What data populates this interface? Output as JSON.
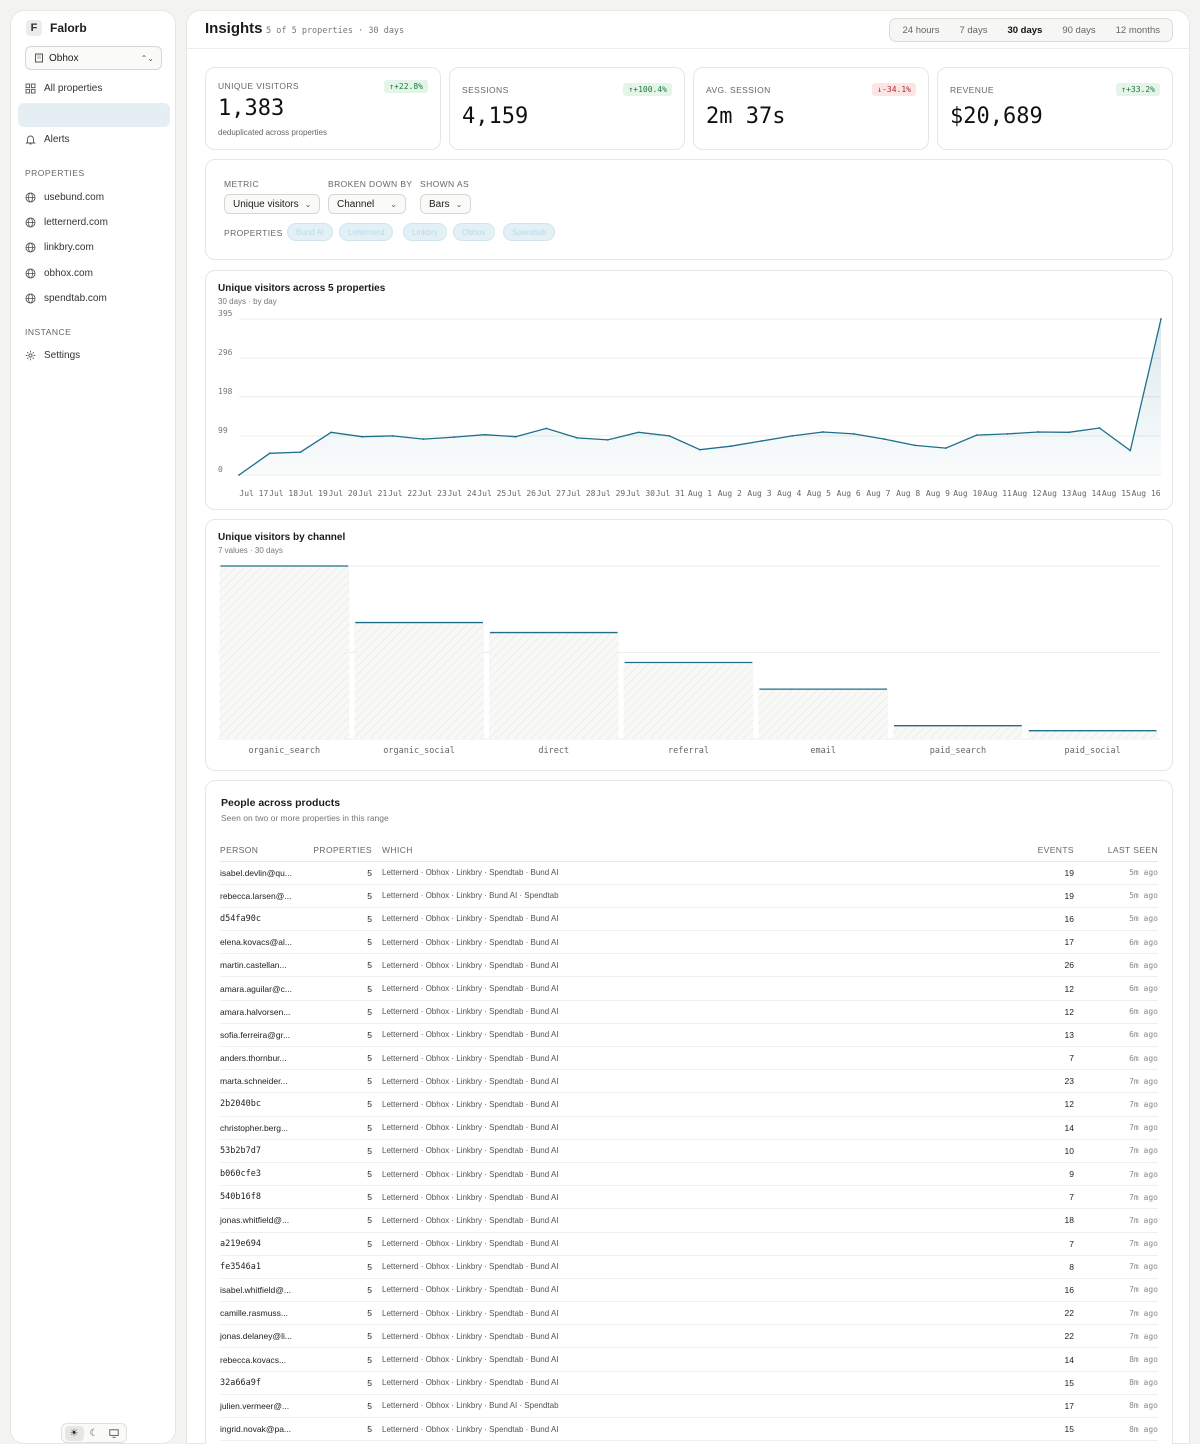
{
  "brand": {
    "logo": "F",
    "name": "Falorb"
  },
  "property_select": {
    "value": "Obhox"
  },
  "nav": {
    "all_properties": "All properties",
    "alerts": "Alerts",
    "properties_section": "PROPERTIES",
    "properties": [
      "usebund.com",
      "letternerd.com",
      "linkbry.com",
      "obhox.com",
      "spendtab.com"
    ],
    "instance_section": "INSTANCE",
    "settings": "Settings"
  },
  "header": {
    "title": "Insights",
    "subtitle": "5 of 5 properties · 30 days"
  },
  "range_tabs": [
    "24 hours",
    "7 days",
    "30 days",
    "90 days",
    "12 months"
  ],
  "active_range": "30 days",
  "kpis": [
    {
      "label": "UNIQUE VISITORS",
      "value": "1,383",
      "delta": "+22.8%",
      "direction": "up",
      "note": "deduplicated across properties"
    },
    {
      "label": "SESSIONS",
      "value": "4,159",
      "delta": "+100.4%",
      "direction": "up"
    },
    {
      "label": "AVG. SESSION",
      "value": "2m 37s",
      "delta": "-34.1%",
      "direction": "down"
    },
    {
      "label": "REVENUE",
      "value": "$20,689",
      "delta": "+33.2%",
      "direction": "up"
    }
  ],
  "controls": {
    "metric_label": "METRIC",
    "metric_value": "Unique visitors",
    "breakdown_label": "BROKEN DOWN BY",
    "breakdown_value": "Channel",
    "shown_label": "SHOWN AS",
    "shown_value": "Bars",
    "properties_label": "PROPERTIES",
    "property_chips": [
      "Bund AI",
      "Letternerd",
      "Linkbry",
      "Obhox",
      "Spendtab"
    ]
  },
  "colors": {
    "accent": "#1f6f8b",
    "accent_fill": "#e7f2f6"
  },
  "chart_data": [
    {
      "type": "area",
      "title": "Unique visitors across 5 properties",
      "subtitle": "30 days · by day",
      "yticks": [
        0,
        99,
        198,
        296,
        395
      ],
      "ylim": [
        0,
        395
      ],
      "x": [
        "Jul 17",
        "Jul 18",
        "Jul 19",
        "Jul 20",
        "Jul 21",
        "Jul 22",
        "Jul 23",
        "Jul 24",
        "Jul 25",
        "Jul 26",
        "Jul 27",
        "Jul 28",
        "Jul 29",
        "Jul 30",
        "Jul 31",
        "Aug 1",
        "Aug 2",
        "Aug 3",
        "Aug 4",
        "Aug 5",
        "Aug 6",
        "Aug 7",
        "Aug 8",
        "Aug 9",
        "Aug 10",
        "Aug 11",
        "Aug 12",
        "Aug 13",
        "Aug 14",
        "Aug 15",
        "Aug 16"
      ],
      "values": [
        0,
        55,
        58,
        108,
        97,
        99,
        91,
        96,
        102,
        97,
        118,
        94,
        89,
        108,
        99,
        64,
        73,
        86,
        99,
        109,
        104,
        91,
        75,
        68,
        101,
        104,
        109,
        108,
        119,
        62,
        395
      ],
      "grid": true
    },
    {
      "type": "bar",
      "title": "Unique visitors by channel",
      "subtitle": "7 values · 30 days",
      "categories": [
        "organic_search",
        "organic_social",
        "direct",
        "referral",
        "email",
        "paid_search",
        "paid_social"
      ],
      "values": [
        520,
        350,
        320,
        230,
        150,
        40,
        25
      ],
      "ylim": [
        0,
        520
      ]
    }
  ],
  "people": {
    "title": "People across products",
    "subtitle": "Seen on two or more properties in this range",
    "columns": [
      "PERSON",
      "PROPERTIES",
      "WHICH",
      "EVENTS",
      "LAST SEEN"
    ],
    "rows": [
      [
        "isabel.devlin@qu...",
        "5",
        "Letternerd · Obhox · Linkbry · Spendtab · Bund AI",
        "19",
        "5m ago"
      ],
      [
        "rebecca.larsen@...",
        "5",
        "Letternerd · Obhox · Linkbry · Bund AI · Spendtab",
        "19",
        "5m ago"
      ],
      [
        "d54fa90c",
        "5",
        "Letternerd · Obhox · Linkbry · Spendtab · Bund AI",
        "16",
        "5m ago"
      ],
      [
        "elena.kovacs@al...",
        "5",
        "Letternerd · Obhox · Linkbry · Spendtab · Bund AI",
        "17",
        "6m ago"
      ],
      [
        "martin.castellan...",
        "5",
        "Letternerd · Obhox · Linkbry · Spendtab · Bund AI",
        "26",
        "6m ago"
      ],
      [
        "amara.aguilar@c...",
        "5",
        "Letternerd · Obhox · Linkbry · Spendtab · Bund AI",
        "12",
        "6m ago"
      ],
      [
        "amara.halvorsen...",
        "5",
        "Letternerd · Obhox · Linkbry · Spendtab · Bund AI",
        "12",
        "6m ago"
      ],
      [
        "sofia.ferreira@gr...",
        "5",
        "Letternerd · Obhox · Linkbry · Spendtab · Bund AI",
        "13",
        "6m ago"
      ],
      [
        "anders.thornbur...",
        "5",
        "Letternerd · Obhox · Linkbry · Spendtab · Bund AI",
        "7",
        "6m ago"
      ],
      [
        "marta.schneider...",
        "5",
        "Letternerd · Obhox · Linkbry · Spendtab · Bund AI",
        "23",
        "7m ago"
      ],
      [
        "2b2040bc",
        "5",
        "Letternerd · Obhox · Linkbry · Spendtab · Bund AI",
        "12",
        "7m ago"
      ],
      [
        "christopher.berg...",
        "5",
        "Letternerd · Obhox · Linkbry · Spendtab · Bund AI",
        "14",
        "7m ago"
      ],
      [
        "53b2b7d7",
        "5",
        "Letternerd · Obhox · Linkbry · Spendtab · Bund AI",
        "10",
        "7m ago"
      ],
      [
        "b060cfe3",
        "5",
        "Letternerd · Obhox · Linkbry · Spendtab · Bund AI",
        "9",
        "7m ago"
      ],
      [
        "540b16f8",
        "5",
        "Letternerd · Obhox · Linkbry · Spendtab · Bund AI",
        "7",
        "7m ago"
      ],
      [
        "jonas.whitfield@...",
        "5",
        "Letternerd · Obhox · Linkbry · Spendtab · Bund AI",
        "18",
        "7m ago"
      ],
      [
        "a219e694",
        "5",
        "Letternerd · Obhox · Linkbry · Spendtab · Bund AI",
        "7",
        "7m ago"
      ],
      [
        "fe3546a1",
        "5",
        "Letternerd · Obhox · Linkbry · Spendtab · Bund AI",
        "8",
        "7m ago"
      ],
      [
        "isabel.whitfield@...",
        "5",
        "Letternerd · Obhox · Linkbry · Spendtab · Bund AI",
        "16",
        "7m ago"
      ],
      [
        "camille.rasmuss...",
        "5",
        "Letternerd · Obhox · Linkbry · Spendtab · Bund AI",
        "22",
        "7m ago"
      ],
      [
        "jonas.delaney@li...",
        "5",
        "Letternerd · Obhox · Linkbry · Spendtab · Bund AI",
        "22",
        "7m ago"
      ],
      [
        "rebecca.kovacs...",
        "5",
        "Letternerd · Obhox · Linkbry · Spendtab · Bund AI",
        "14",
        "8m ago"
      ],
      [
        "32a66a9f",
        "5",
        "Letternerd · Obhox · Linkbry · Spendtab · Bund AI",
        "15",
        "8m ago"
      ],
      [
        "julien.vermeer@...",
        "5",
        "Letternerd · Obhox · Linkbry · Bund AI · Spendtab",
        "17",
        "8m ago"
      ],
      [
        "ingrid.novak@pa...",
        "5",
        "Letternerd · Obhox · Linkbry · Spendtab · Bund AI",
        "15",
        "8m ago"
      ]
    ]
  }
}
